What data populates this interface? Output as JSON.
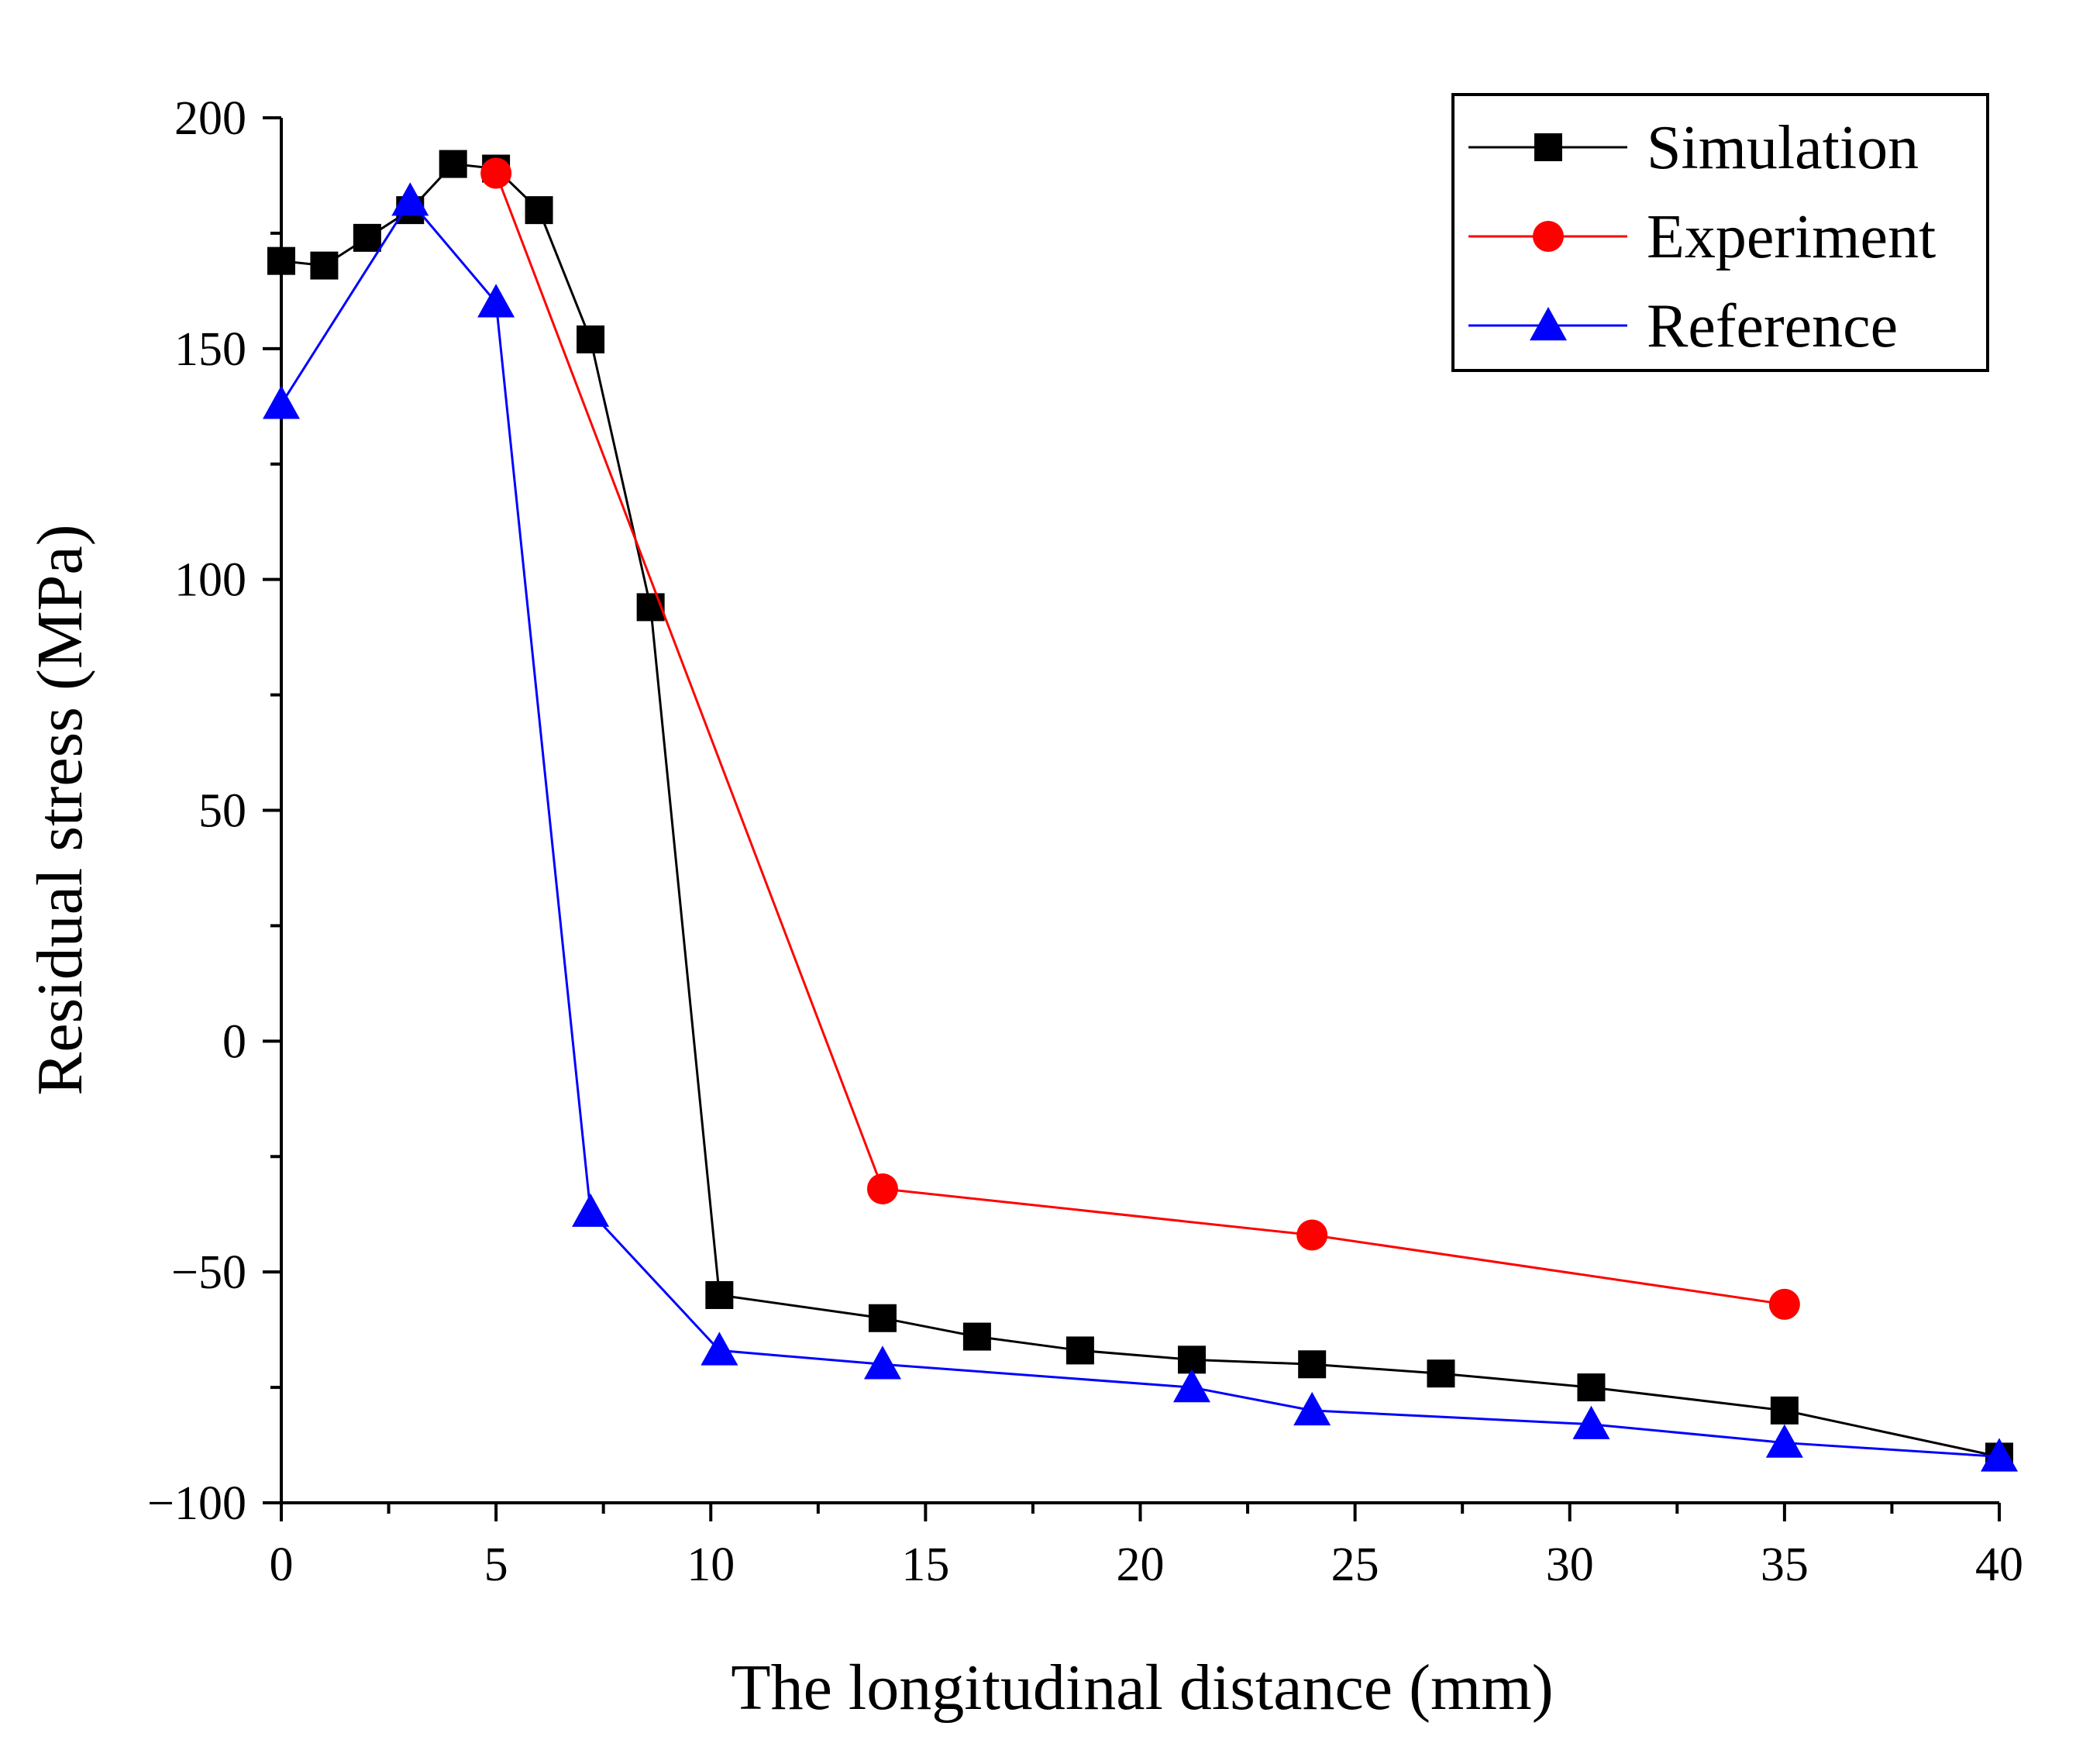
{
  "chart_data": {
    "type": "line",
    "title": "",
    "xlabel": "The longitudinal distance (mm)",
    "ylabel": "Residual stress (MPa)",
    "xlim": [
      0,
      40
    ],
    "ylim": [
      -100,
      200
    ],
    "xticks": [
      0,
      5,
      10,
      15,
      20,
      25,
      30,
      35,
      40
    ],
    "yticks": [
      -100,
      -50,
      0,
      50,
      100,
      150,
      200
    ],
    "xtick_labels": [
      "0",
      "5",
      "10",
      "15",
      "20",
      "25",
      "30",
      "35",
      "40"
    ],
    "ytick_labels": [
      "−100",
      "−50",
      "0",
      "50",
      "100",
      "150",
      "200"
    ],
    "grid": false,
    "legend_position": "top-right",
    "series": [
      {
        "name": "Simulation",
        "color": "#000000",
        "marker": "square",
        "x": [
          0,
          1,
          2,
          3,
          4,
          5,
          6,
          7.2,
          8.6,
          10.2,
          14,
          16.2,
          18.6,
          21.2,
          24,
          27,
          30.5,
          35,
          40
        ],
        "y": [
          169,
          168,
          174,
          180,
          190,
          189,
          180,
          152,
          94,
          -55,
          -60,
          -64,
          -67,
          -69,
          -70,
          -72,
          -75,
          -80,
          -90
        ]
      },
      {
        "name": "Experiment",
        "color": "#ff0000",
        "marker": "circle",
        "x": [
          5,
          14,
          24,
          35
        ],
        "y": [
          188,
          -32,
          -42,
          -57
        ]
      },
      {
        "name": "Reference",
        "color": "#0000ff",
        "marker": "triangle",
        "x": [
          0,
          3,
          5,
          7.2,
          10.2,
          14,
          21.2,
          24,
          30.5,
          35,
          40
        ],
        "y": [
          138,
          182,
          160,
          -37,
          -67,
          -70,
          -75,
          -80,
          -83,
          -87,
          -90
        ]
      }
    ]
  }
}
